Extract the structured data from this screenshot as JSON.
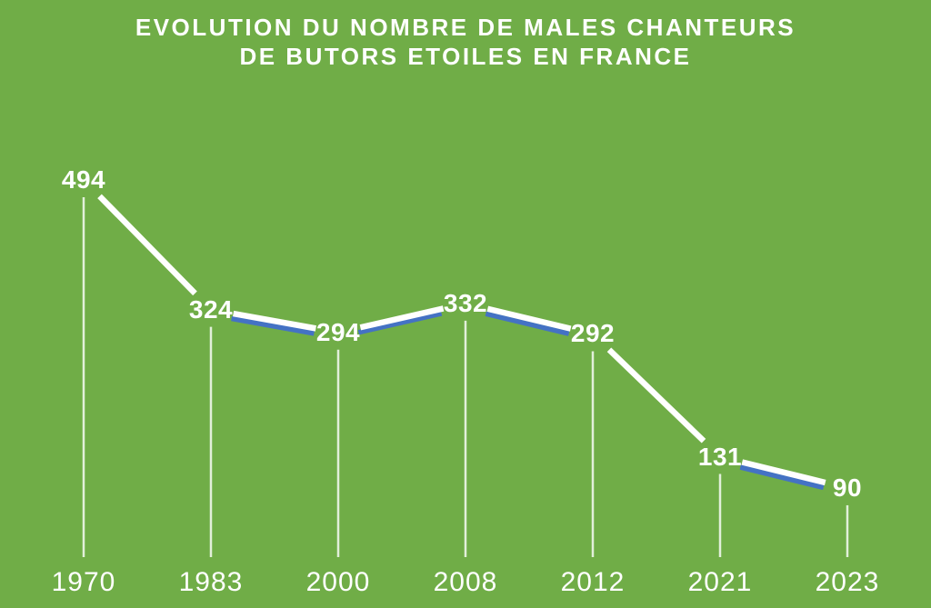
{
  "title": {
    "line1": "EVOLUTION DU NOMBRE DE MALES CHANTEURS",
    "line2": "DE BUTORS ETOILES EN FRANCE"
  },
  "colors": {
    "background": "#70ad47",
    "line": "#ffffff",
    "line_shadow": "#4472c4",
    "guide_line": "rgba(255,255,255,0.8)",
    "text": "#ffffff"
  },
  "chart_data": {
    "type": "line",
    "title": "EVOLUTION DU NOMBRE DE MALES CHANTEURS DE BUTORS ETOILES EN FRANCE",
    "categories": [
      "1970",
      "1983",
      "2000",
      "2008",
      "2012",
      "2021",
      "2023"
    ],
    "values": [
      494,
      324,
      294,
      332,
      292,
      131,
      90
    ],
    "xlabel": "",
    "ylabel": "",
    "grid": false,
    "legend": false,
    "x_axis_spacing": "categorical-even",
    "point_labels_visible": true
  }
}
